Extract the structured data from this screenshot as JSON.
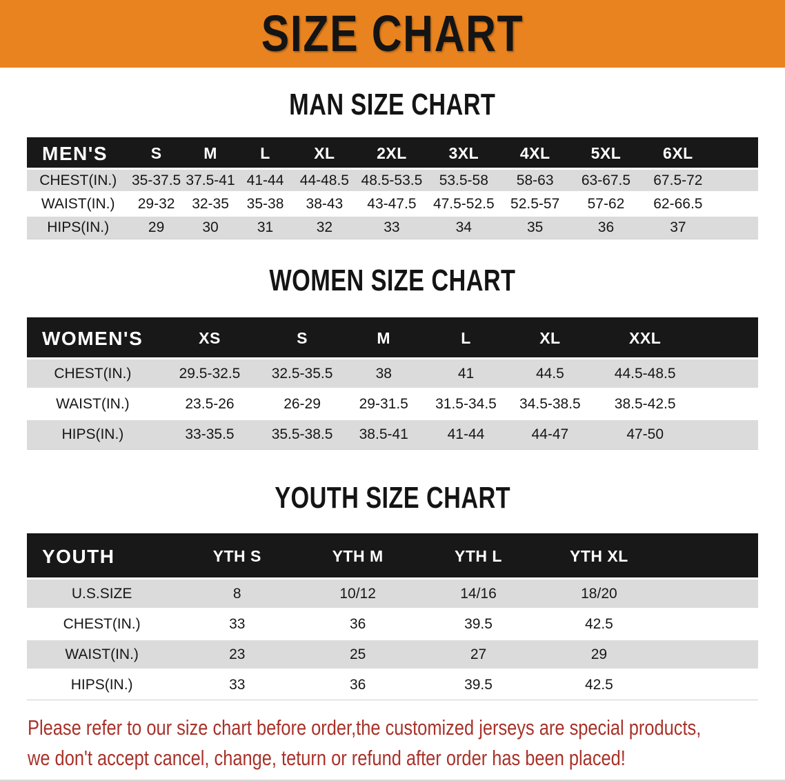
{
  "banner": {
    "title": "SIZE CHART",
    "bg_color": "#E8831F"
  },
  "sections": [
    {
      "heading": "MAN SIZE CHART",
      "table": {
        "header_label": "MEN'S",
        "columns": [
          "S",
          "M",
          "L",
          "XL",
          "2XL",
          "3XL",
          "4XL",
          "5XL",
          "6XL"
        ],
        "rows": [
          {
            "label": "CHEST(IN.)",
            "values": [
              "35-37.5",
              "37.5-41",
              "41-44",
              "44-48.5",
              "48.5-53.5",
              "53.5-58",
              "58-63",
              "63-67.5",
              "67.5-72"
            ]
          },
          {
            "label": "WAIST(IN.)",
            "values": [
              "29-32",
              "32-35",
              "35-38",
              "38-43",
              "43-47.5",
              "47.5-52.5",
              "52.5-57",
              "57-62",
              "62-66.5"
            ]
          },
          {
            "label": "HIPS(IN.)",
            "values": [
              "29",
              "30",
              "31",
              "32",
              "33",
              "34",
              "35",
              "36",
              "37"
            ]
          }
        ]
      }
    },
    {
      "heading": "WOMEN SIZE CHART",
      "table": {
        "header_label": "WOMEN'S",
        "columns": [
          "XS",
          "S",
          "M",
          "L",
          "XL",
          "XXL"
        ],
        "rows": [
          {
            "label": "CHEST(IN.)",
            "values": [
              "29.5-32.5",
              "32.5-35.5",
              "38",
              "41",
              "44.5",
              "44.5-48.5"
            ]
          },
          {
            "label": "WAIST(IN.)",
            "values": [
              "23.5-26",
              "26-29",
              "29-31.5",
              "31.5-34.5",
              "34.5-38.5",
              "38.5-42.5"
            ]
          },
          {
            "label": "HIPS(IN.)",
            "values": [
              "33-35.5",
              "35.5-38.5",
              "38.5-41",
              "41-44",
              "44-47",
              "47-50"
            ]
          }
        ]
      }
    },
    {
      "heading": "YOUTH SIZE CHART",
      "table": {
        "header_label": "YOUTH",
        "columns": [
          "YTH S",
          "YTH M",
          "YTH L",
          "YTH XL"
        ],
        "rows": [
          {
            "label": "U.S.SIZE",
            "values": [
              "8",
              "10/12",
              "14/16",
              "18/20"
            ]
          },
          {
            "label": "CHEST(IN.)",
            "values": [
              "33",
              "36",
              "39.5",
              "42.5"
            ]
          },
          {
            "label": "WAIST(IN.)",
            "values": [
              "23",
              "25",
              "27",
              "29"
            ]
          },
          {
            "label": "HIPS(IN.)",
            "values": [
              "33",
              "36",
              "39.5",
              "42.5"
            ]
          }
        ]
      }
    }
  ],
  "disclaimer": {
    "line1": "Please refer to our size chart before order,the customized jerseys are special products,",
    "line2": "we don't accept cancel, change, teturn or refund after order has been placed!",
    "color": "#A8322A"
  }
}
